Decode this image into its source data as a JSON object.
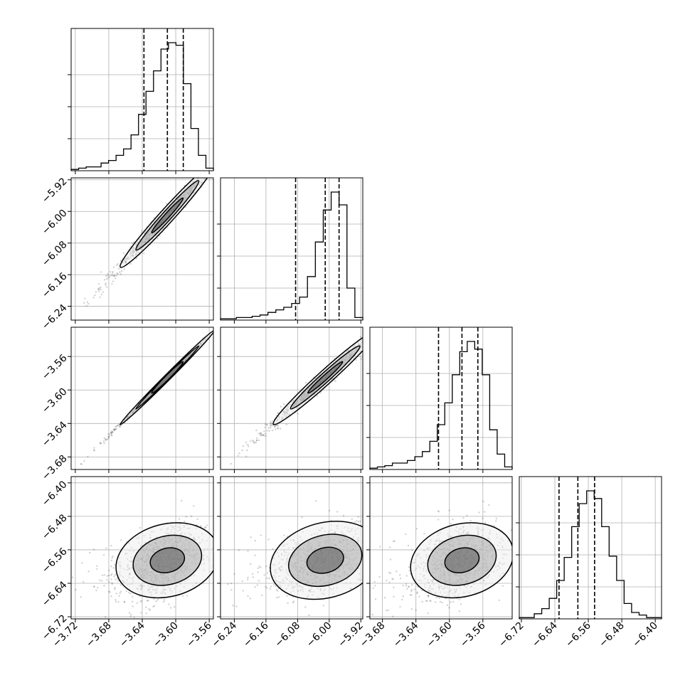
{
  "chart_data": {
    "type": "corner",
    "parameters": 4,
    "grid": true,
    "axis_ticks": [
      [
        "-3.72",
        "-3.68",
        "-3.64",
        "-3.60",
        "-3.56"
      ],
      [
        "-6.24",
        "-6.16",
        "-6.08",
        "-6.00",
        "-5.92"
      ],
      [
        "-3.68",
        "-3.64",
        "-3.60",
        "-3.56"
      ],
      [
        "-6.72",
        "-6.64",
        "-6.56",
        "-6.48",
        "-6.40"
      ]
    ],
    "axis_tick_values": [
      [
        -3.72,
        -3.68,
        -3.64,
        -3.6,
        -3.56
      ],
      [
        -6.24,
        -6.16,
        -6.08,
        -6.0,
        -5.92
      ],
      [
        -3.68,
        -3.64,
        -3.6,
        -3.56
      ],
      [
        -6.72,
        -6.64,
        -6.56,
        -6.48,
        -6.4
      ]
    ],
    "axis_ranges": [
      [
        -3.725,
        -3.555
      ],
      [
        -6.275,
        -5.915
      ],
      [
        -3.695,
        -3.525
      ],
      [
        -6.725,
        -6.385
      ]
    ],
    "quantiles": [
      [
        -3.638,
        -3.61,
        -3.591
      ],
      [
        -6.085,
        -6.01,
        -5.975
      ],
      [
        -3.613,
        -3.585,
        -3.566
      ],
      [
        -6.63,
        -6.585,
        -6.545
      ]
    ],
    "histograms": [
      [
        1,
        2,
        3,
        3,
        6,
        8,
        12,
        17,
        28,
        44,
        62,
        78,
        95,
        100,
        98,
        68,
        33,
        12,
        2
      ],
      [
        1,
        1,
        2,
        2,
        3,
        4,
        6,
        8,
        10,
        13,
        18,
        34,
        61,
        86,
        100,
        90,
        25,
        2
      ],
      [
        1,
        2,
        3,
        5,
        5,
        7,
        10,
        14,
        22,
        35,
        52,
        74,
        92,
        100,
        94,
        74,
        31,
        12,
        2
      ],
      [
        1,
        1,
        4,
        8,
        16,
        30,
        48,
        72,
        90,
        100,
        94,
        72,
        49,
        30,
        12,
        5,
        3,
        1,
        1
      ]
    ],
    "correlations": {
      "1-0": 0.98,
      "2-0": 0.998,
      "2-1": 0.98,
      "3-0": 0.35,
      "3-1": 0.38,
      "3-2": 0.35
    }
  }
}
